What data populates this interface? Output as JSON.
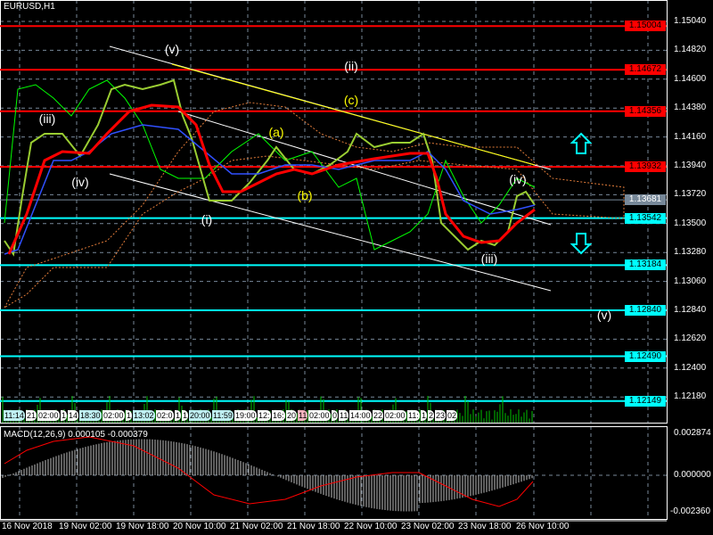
{
  "window": {
    "title": "EURUSD,H1"
  },
  "price_axis": [
    "1.15040",
    "1.14820",
    "1.14600",
    "1.14380",
    "1.14160",
    "1.13940",
    "1.13720",
    "1.13500",
    "1.13280",
    "1.13060",
    "1.12840",
    "1.12620",
    "1.12400",
    "1.12180"
  ],
  "levels": [
    {
      "value": "1.15004",
      "color": "#ff0000"
    },
    {
      "value": "1.14672",
      "color": "#ff0000"
    },
    {
      "value": "1.14356",
      "color": "#ff0000"
    },
    {
      "value": "1.13932",
      "color": "#ff0000"
    },
    {
      "value": "1.13681",
      "color": "#778899"
    },
    {
      "value": "1.13542",
      "color": "#00ffff"
    },
    {
      "value": "1.13184",
      "color": "#00ffff"
    },
    {
      "value": "1.12840",
      "color": "#00ffff"
    },
    {
      "value": "1.12490",
      "color": "#00ffff"
    },
    {
      "value": "1.12149",
      "color": "#00ffff"
    }
  ],
  "waves": [
    {
      "t": "(v)",
      "c": "#ffffff"
    },
    {
      "t": "(iii)",
      "c": "#ffffff"
    },
    {
      "t": "(iv)",
      "c": "#ffffff"
    },
    {
      "t": "(i)",
      "c": "#ffffff"
    },
    {
      "t": "(a)",
      "c": "#ffff00"
    },
    {
      "t": "(b)",
      "c": "#ffff00"
    },
    {
      "t": "(c)",
      "c": "#ffff00"
    },
    {
      "t": "(ii)",
      "c": "#ffffff"
    },
    {
      "t": "(iv)",
      "c": "#ffffff"
    },
    {
      "t": "(iii)",
      "c": "#ffffff"
    },
    {
      "t": "(v)",
      "c": "#ffffff"
    }
  ],
  "time_bubbles": [
    "11:14",
    "21",
    "02:00",
    "1",
    "14",
    "18:30",
    "02:00",
    "1",
    "13:02",
    "02:0",
    "1",
    "1",
    "20:00",
    "11:59",
    "19:00",
    "12:",
    "16:",
    "20",
    "11",
    "02:00",
    "0",
    "11",
    "14:00",
    "22",
    "02:00",
    "11:",
    "1",
    "2",
    "23",
    "02"
  ],
  "macd": {
    "label": "MACD(12,26,9) 0.000105 -0.000379",
    "axis": [
      "0.002874",
      "0.000000",
      "-0.002360"
    ]
  },
  "time_axis": [
    "16 Nov 2018",
    "19 Nov 02:00",
    "19 Nov 18:00",
    "20 Nov 10:00",
    "21 Nov 02:00",
    "21 Nov 18:00",
    "22 Nov 10:00",
    "23 Nov 02:00",
    "23 Nov 18:00",
    "26 Nov 10:00"
  ]
}
